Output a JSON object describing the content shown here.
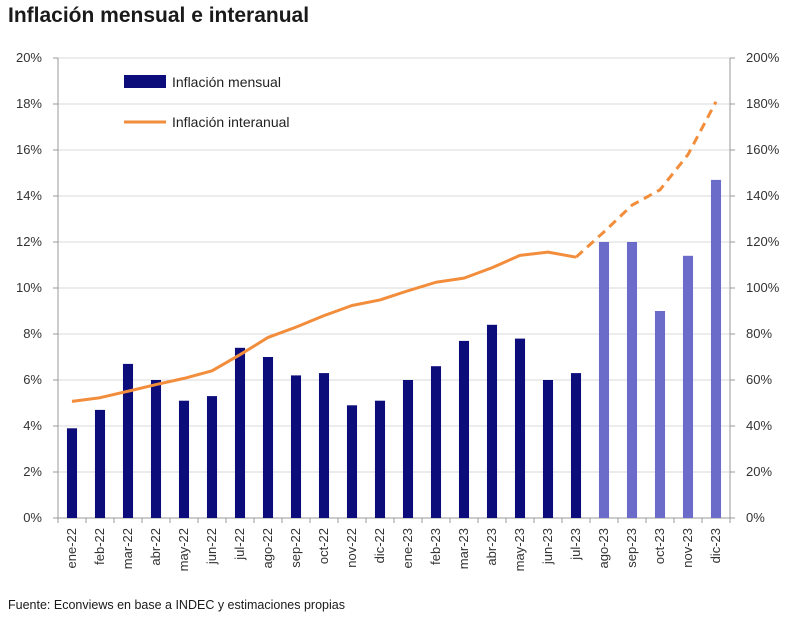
{
  "chart_data": {
    "type": "bar",
    "title": "Inflación mensual e interanual",
    "source": "Fuente: Econviews en base a INDEC y estimaciones propias",
    "categories": [
      "ene-22",
      "feb-22",
      "mar-22",
      "abr-22",
      "may-22",
      "jun-22",
      "jul-22",
      "ago-22",
      "sep-22",
      "oct-22",
      "nov-22",
      "dic-22",
      "ene-23",
      "feb-23",
      "mar-23",
      "abr-23",
      "may-23",
      "jun-23",
      "jul-23",
      "ago-23",
      "sep-23",
      "oct-23",
      "nov-23",
      "dic-23"
    ],
    "series": [
      {
        "name": "Inflación mensual",
        "axis": "left",
        "kind": "bar",
        "values": [
          3.9,
          4.7,
          6.7,
          6.0,
          5.1,
          5.3,
          7.4,
          7.0,
          6.2,
          6.3,
          4.9,
          5.1,
          6.0,
          6.6,
          7.7,
          8.4,
          7.8,
          6.0,
          6.3,
          12.0,
          12.0,
          9.0,
          11.4,
          14.7
        ],
        "estimated_from_index": 19
      },
      {
        "name": "Inflación interanual",
        "axis": "right",
        "kind": "line",
        "values": [
          50.7,
          52.3,
          55.1,
          58.0,
          60.7,
          64.0,
          71.0,
          78.5,
          83.0,
          88.0,
          92.4,
          94.8,
          98.8,
          102.5,
          104.3,
          108.8,
          114.2,
          115.6,
          113.4,
          124.4,
          136.0,
          142.7,
          158.0,
          181.0
        ],
        "estimated_from_index": 18
      }
    ],
    "ylim_left": [
      0,
      20
    ],
    "yticks_left": [
      "0%",
      "2%",
      "4%",
      "6%",
      "8%",
      "10%",
      "12%",
      "14%",
      "16%",
      "18%",
      "20%"
    ],
    "ylim_right": [
      0,
      200
    ],
    "yticks_right": [
      "0%",
      "20%",
      "40%",
      "60%",
      "80%",
      "100%",
      "120%",
      "140%",
      "160%",
      "180%",
      "200%"
    ],
    "grid": true,
    "legend": "top-left",
    "colors": {
      "bar": "#0c0c7a",
      "bar_estimated": "#6b6bc9",
      "line": "#f28d3c",
      "grid": "#d9d9d9",
      "axis": "#9a9a9a"
    }
  }
}
